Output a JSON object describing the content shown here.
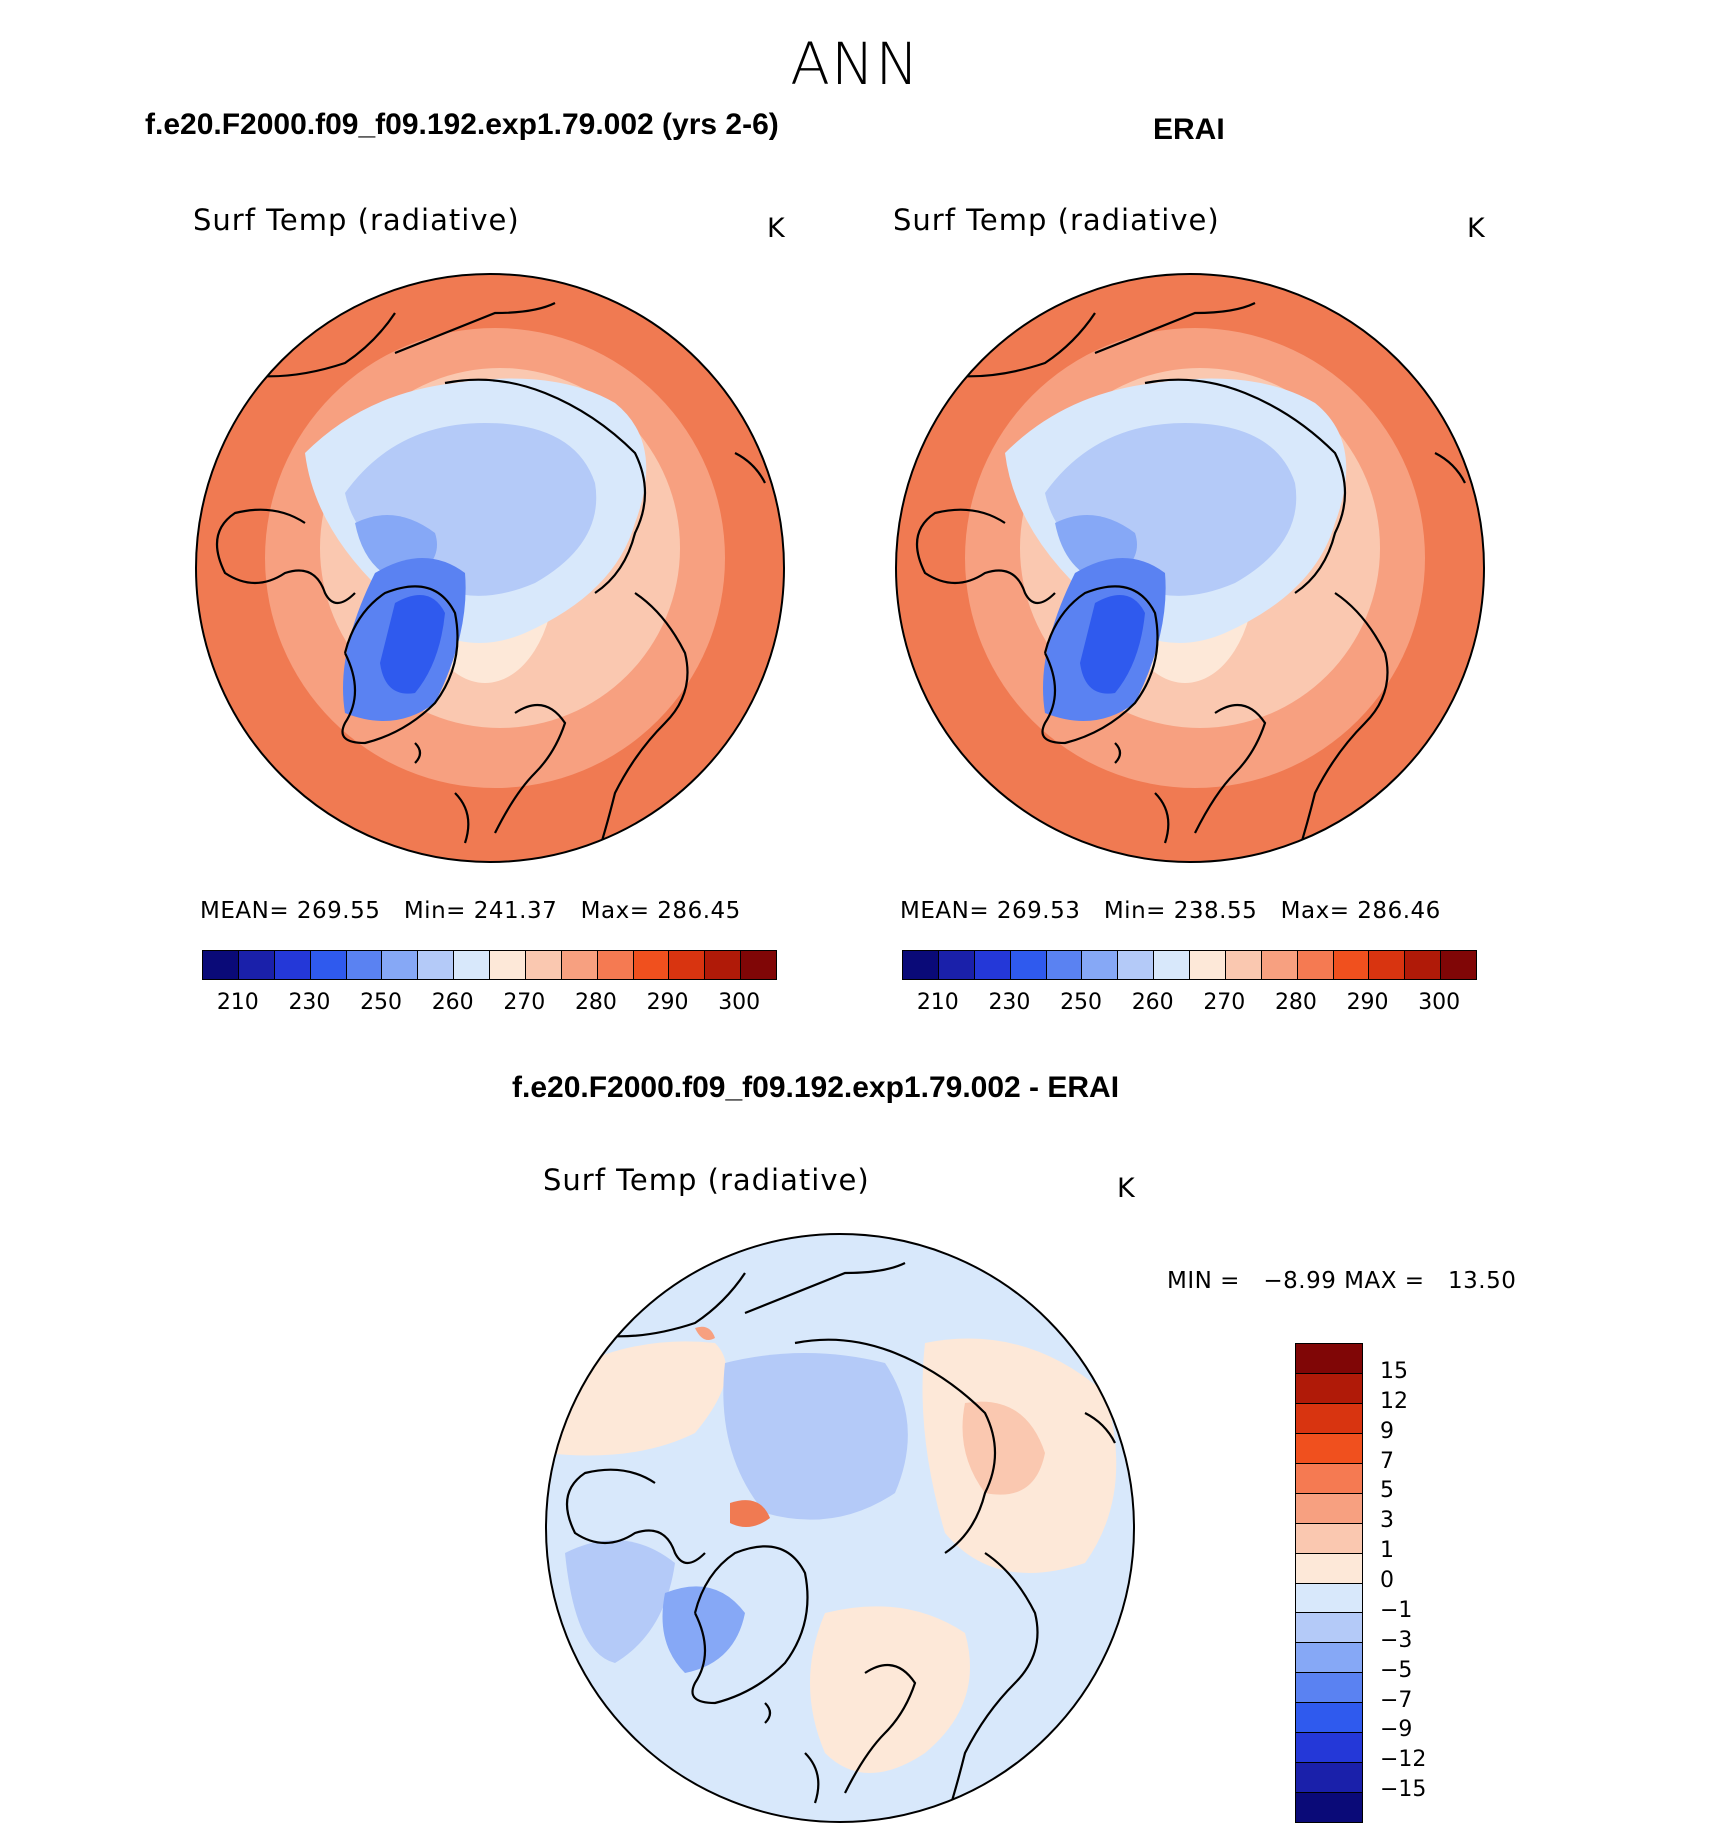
{
  "season": "ANN",
  "panels": [
    {
      "title": "f.e20.F2000.f09_f09.192.exp1.79.002 (yrs 2-6)",
      "variable": "Surf Temp (radiative)",
      "units": "K",
      "stats": {
        "mean_label": "MEAN=",
        "mean": "269.55",
        "min_label": "Min=",
        "min": "241.37",
        "max_label": "Max=",
        "max": "286.45"
      }
    },
    {
      "title": "ERAI",
      "variable": "Surf Temp (radiative)",
      "units": "K",
      "stats": {
        "mean_label": "MEAN=",
        "mean": "269.53",
        "min_label": "Min=",
        "min": "238.55",
        "max_label": "Max=",
        "max": "286.46"
      }
    },
    {
      "title": "f.e20.F2000.f09_f09.192.exp1.79.002 - ERAI",
      "variable": "Surf Temp (radiative)",
      "units": "K",
      "stats": {
        "min_label": "MIN =",
        "min": "−8.99",
        "max_label": "MAX =",
        "max": "13.50"
      }
    }
  ],
  "colorbar_abs": {
    "tick_labels": [
      "210",
      "230",
      "250",
      "260",
      "270",
      "280",
      "290",
      "300"
    ],
    "colors": [
      "#0a0a78",
      "#1a20aa",
      "#2438d8",
      "#2f5aee",
      "#5a82f2",
      "#86a8f6",
      "#b4caf8",
      "#d8e8fb",
      "#fde8d8",
      "#fac8b0",
      "#f7a080",
      "#f57a52",
      "#f0501e",
      "#d83410",
      "#b01a08",
      "#800606"
    ]
  },
  "colorbar_diff": {
    "tick_labels": [
      "15",
      "12",
      "9",
      "7",
      "5",
      "3",
      "1",
      "0",
      "−1",
      "−3",
      "−5",
      "−7",
      "−9",
      "−12",
      "−15"
    ],
    "colors": [
      "#800606",
      "#b01a08",
      "#d83410",
      "#f0501e",
      "#f57a52",
      "#f7a080",
      "#fac8b0",
      "#fde8d8",
      "#d8e8fb",
      "#b4caf8",
      "#86a8f6",
      "#5a82f2",
      "#2f5aee",
      "#2438d8",
      "#1a20aa",
      "#0a0a78"
    ]
  },
  "map_colors": {
    "warm_outer": "#f07a52",
    "warm_mid": "#f7a080",
    "warm_light": "#fac8b0",
    "neutral": "#fde8d8",
    "cool_light": "#d8e8fb",
    "cool_mid": "#b4caf8",
    "cool_deep": "#86a8f6",
    "cold": "#5a82f2",
    "coldest": "#2f5aee"
  }
}
